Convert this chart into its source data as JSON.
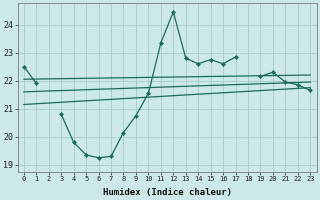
{
  "xlabel": "Humidex (Indice chaleur)",
  "ylabel": "",
  "background_color": "#cce8e8",
  "grid_color": "#aacece",
  "line_color": "#1a6b5a",
  "x_data": [
    0,
    1,
    2,
    3,
    4,
    5,
    6,
    7,
    8,
    9,
    10,
    11,
    12,
    13,
    14,
    15,
    16,
    17,
    18,
    19,
    20,
    21,
    22,
    23
  ],
  "y_main": [
    22.5,
    21.9,
    null,
    20.8,
    19.8,
    19.35,
    19.25,
    19.3,
    20.15,
    20.75,
    21.55,
    23.35,
    24.45,
    22.8,
    22.6,
    22.75,
    22.6,
    22.85,
    null,
    22.15,
    22.3,
    21.95,
    21.85,
    21.65
  ],
  "y_trend1_x": [
    0,
    23
  ],
  "y_trend1_y": [
    22.05,
    22.2
  ],
  "y_trend2_x": [
    0,
    23
  ],
  "y_trend2_y": [
    21.6,
    21.95
  ],
  "y_trend3_x": [
    0,
    23
  ],
  "y_trend3_y": [
    21.15,
    21.75
  ],
  "ylim": [
    18.75,
    24.75
  ],
  "xlim": [
    -0.5,
    23.5
  ],
  "yticks": [
    19,
    20,
    21,
    22,
    23,
    24
  ],
  "xticks": [
    0,
    1,
    2,
    3,
    4,
    5,
    6,
    7,
    8,
    9,
    10,
    11,
    12,
    13,
    14,
    15,
    16,
    17,
    18,
    19,
    20,
    21,
    22,
    23
  ]
}
